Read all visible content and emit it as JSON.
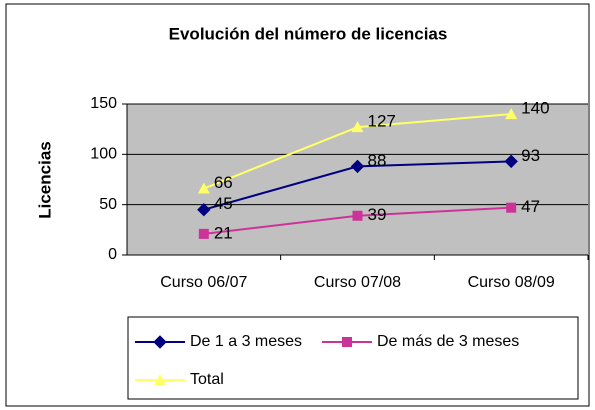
{
  "chart_data": {
    "type": "line",
    "title": "Evolución del número de licencias",
    "ylabel": "Licencias",
    "categories": [
      "Curso 06/07",
      "Curso 07/08",
      "Curso 08/09"
    ],
    "series": [
      {
        "name": "De 1 a 3 meses",
        "color": "#000080",
        "marker": "diamond",
        "values": [
          45,
          88,
          93
        ]
      },
      {
        "name": "De más de 3 meses",
        "color": "#cc3399",
        "marker": "square",
        "values": [
          21,
          39,
          47
        ]
      },
      {
        "name": "Total",
        "color": "#ffff66",
        "marker": "triangle",
        "values": [
          66,
          127,
          140
        ]
      }
    ],
    "ylim": [
      0,
      150
    ],
    "yticks": [
      0,
      50,
      100,
      150
    ],
    "grid": true,
    "legend": "bottom"
  }
}
